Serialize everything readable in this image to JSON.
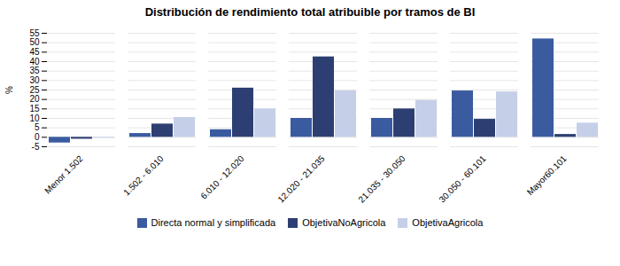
{
  "chart_data": {
    "type": "bar",
    "title": "Distribución de rendimiento total atribuible por tramos de BI",
    "categories": [
      "Menor 1.502",
      "1.502 - 6.010",
      "6.010 - 12.020",
      "12.020 - 21.035",
      "21.035 - 30.050",
      "30.050 - 60.101",
      "Mayor60.101"
    ],
    "series": [
      {
        "name": "Directa normal y simplificada",
        "color": "#3a5ba0",
        "values": [
          -3,
          2,
          4,
          10,
          10,
          24.5,
          52
        ]
      },
      {
        "name": "ObjetivaNoAgricola",
        "color": "#2d3f72",
        "values": [
          -1,
          7,
          26,
          42.5,
          15,
          9.5,
          1.5
        ]
      },
      {
        "name": "ObjetivaAgricola",
        "color": "#c5cfe8",
        "values": [
          -0.5,
          10.5,
          15,
          24.5,
          19.5,
          24,
          7.5
        ]
      }
    ],
    "ylabel": "%",
    "ylim": [
      -5,
      55
    ],
    "yticks": [
      -5,
      0,
      5,
      10,
      15,
      20,
      25,
      30,
      35,
      40,
      45,
      50,
      55
    ],
    "grid": true,
    "legend": "bottom"
  }
}
